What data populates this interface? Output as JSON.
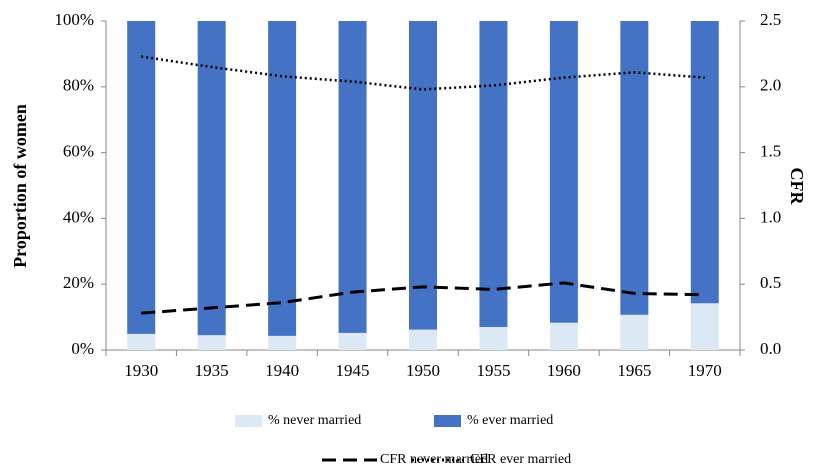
{
  "chart_data": {
    "type": "bar",
    "categories": [
      "1930",
      "1935",
      "1940",
      "1945",
      "1950",
      "1955",
      "1960",
      "1965",
      "1970"
    ],
    "y_label": "Proportion of women",
    "y2_label": "CFR",
    "stacked": true,
    "series": [
      {
        "name": "% never married",
        "color": "#dce9f5",
        "values": [
          4.9,
          4.5,
          4.3,
          5.2,
          6.2,
          7,
          8.3,
          10.7,
          14.2
        ]
      },
      {
        "name": "% ever married",
        "color": "#4472c4",
        "values": [
          95.1,
          95.5,
          95.7,
          94.8,
          93.8,
          93,
          91.7,
          89.3,
          85.8
        ]
      },
      {
        "name": "CFR never married",
        "type": "line",
        "axis": "y2",
        "color": "#000000",
        "style": "dashed",
        "values": [
          0.28,
          0.32,
          0.36,
          0.44,
          0.48,
          0.46,
          0.51,
          0.43,
          0.42
        ]
      },
      {
        "name": "CFR ever married",
        "type": "line",
        "axis": "y2",
        "color": "#000000",
        "style": "dotted",
        "values": [
          2.23,
          2.15,
          2.08,
          2.04,
          1.98,
          2.01,
          2.07,
          2.11,
          2.07
        ]
      }
    ],
    "ylim": [
      0,
      100
    ],
    "yticks": [
      {
        "value": 0,
        "label": "0%"
      },
      {
        "value": 20,
        "label": "20%"
      },
      {
        "value": 40,
        "label": "40%"
      },
      {
        "value": 60,
        "label": "60%"
      },
      {
        "value": 80,
        "label": "80%"
      },
      {
        "value": 100,
        "label": "100%"
      }
    ],
    "y2lim": [
      0,
      2.5
    ],
    "y2ticks": [
      {
        "value": 0,
        "label": "0.0"
      },
      0.5,
      {
        "value": 1,
        "label": "1.0"
      },
      1.5,
      {
        "value": 2,
        "label": "2.0"
      },
      2.5
    ]
  }
}
